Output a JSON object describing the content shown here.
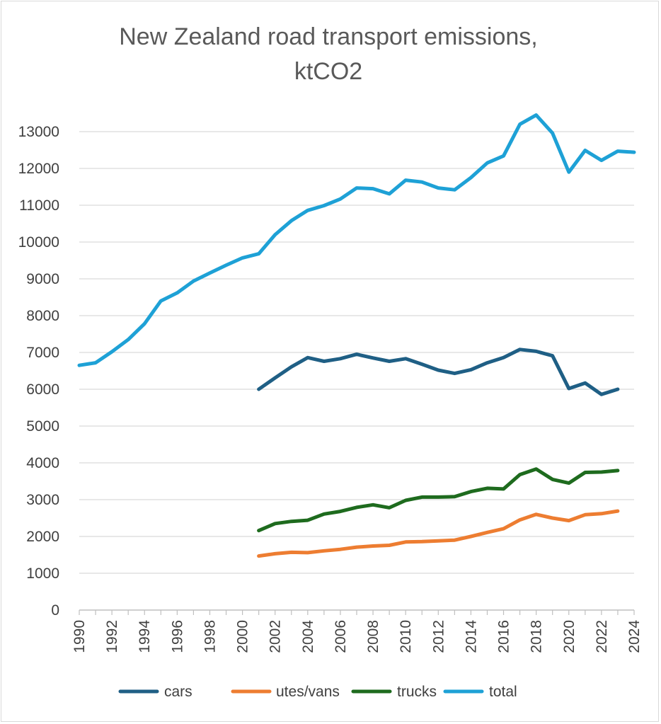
{
  "chart_data": {
    "type": "line",
    "title_lines": [
      "New Zealand road transport emissions,",
      "ktCO2"
    ],
    "xlabel": "",
    "ylabel": "",
    "xlim": [
      1990,
      2024
    ],
    "ylim": [
      0,
      13000
    ],
    "y_ticks": [
      0,
      1000,
      2000,
      3000,
      4000,
      5000,
      6000,
      7000,
      8000,
      9000,
      10000,
      11000,
      12000,
      13000
    ],
    "x_ticks": [
      1990,
      1992,
      1994,
      1996,
      1998,
      2000,
      2002,
      2004,
      2006,
      2008,
      2010,
      2012,
      2014,
      2016,
      2018,
      2020,
      2022,
      2024
    ],
    "grid": "horizontal",
    "legend_position": "bottom",
    "series": [
      {
        "name": "cars",
        "color": "#1f5f85",
        "x": [
          2001,
          2002,
          2003,
          2004,
          2005,
          2006,
          2007,
          2008,
          2009,
          2010,
          2011,
          2012,
          2013,
          2014,
          2015,
          2016,
          2017,
          2018,
          2019,
          2020,
          2021,
          2022,
          2023
        ],
        "values": [
          6000,
          6310,
          6610,
          6860,
          6760,
          6830,
          6950,
          6850,
          6760,
          6830,
          6680,
          6520,
          6430,
          6530,
          6720,
          6860,
          7080,
          7030,
          6910,
          6020,
          6170,
          5860,
          6000
        ]
      },
      {
        "name": "utes/vans",
        "color": "#ed7d31",
        "x": [
          2001,
          2002,
          2003,
          2004,
          2005,
          2006,
          2007,
          2008,
          2009,
          2010,
          2011,
          2012,
          2013,
          2014,
          2015,
          2016,
          2017,
          2018,
          2019,
          2020,
          2021,
          2022,
          2023
        ],
        "values": [
          1470,
          1530,
          1570,
          1560,
          1610,
          1650,
          1710,
          1740,
          1760,
          1850,
          1860,
          1880,
          1900,
          2000,
          2110,
          2210,
          2450,
          2600,
          2500,
          2430,
          2590,
          2620,
          2690
        ]
      },
      {
        "name": "trucks",
        "color": "#1e6b1e",
        "x": [
          2001,
          2002,
          2003,
          2004,
          2005,
          2006,
          2007,
          2008,
          2009,
          2010,
          2011,
          2012,
          2013,
          2014,
          2015,
          2016,
          2017,
          2018,
          2019,
          2020,
          2021,
          2022,
          2023
        ],
        "values": [
          2160,
          2350,
          2410,
          2440,
          2610,
          2680,
          2790,
          2860,
          2780,
          2980,
          3070,
          3070,
          3080,
          3220,
          3310,
          3290,
          3680,
          3830,
          3550,
          3450,
          3740,
          3750,
          3790
        ]
      },
      {
        "name": "total",
        "color": "#1ea1d6",
        "x": [
          1990,
          1991,
          1992,
          1993,
          1994,
          1995,
          1996,
          1997,
          1998,
          1999,
          2000,
          2001,
          2002,
          2003,
          2004,
          2005,
          2006,
          2007,
          2008,
          2009,
          2010,
          2011,
          2012,
          2013,
          2014,
          2015,
          2016,
          2017,
          2018,
          2019,
          2020,
          2021,
          2022,
          2023,
          2024
        ],
        "values": [
          6650,
          6720,
          7020,
          7350,
          7780,
          8400,
          8620,
          8940,
          9160,
          9370,
          9570,
          9680,
          10200,
          10580,
          10860,
          10990,
          11170,
          11470,
          11450,
          11310,
          11680,
          11630,
          11470,
          11420,
          11750,
          12150,
          12340,
          13200,
          13450,
          12960,
          11900,
          12490,
          12220,
          12470,
          12440
        ]
      }
    ]
  }
}
